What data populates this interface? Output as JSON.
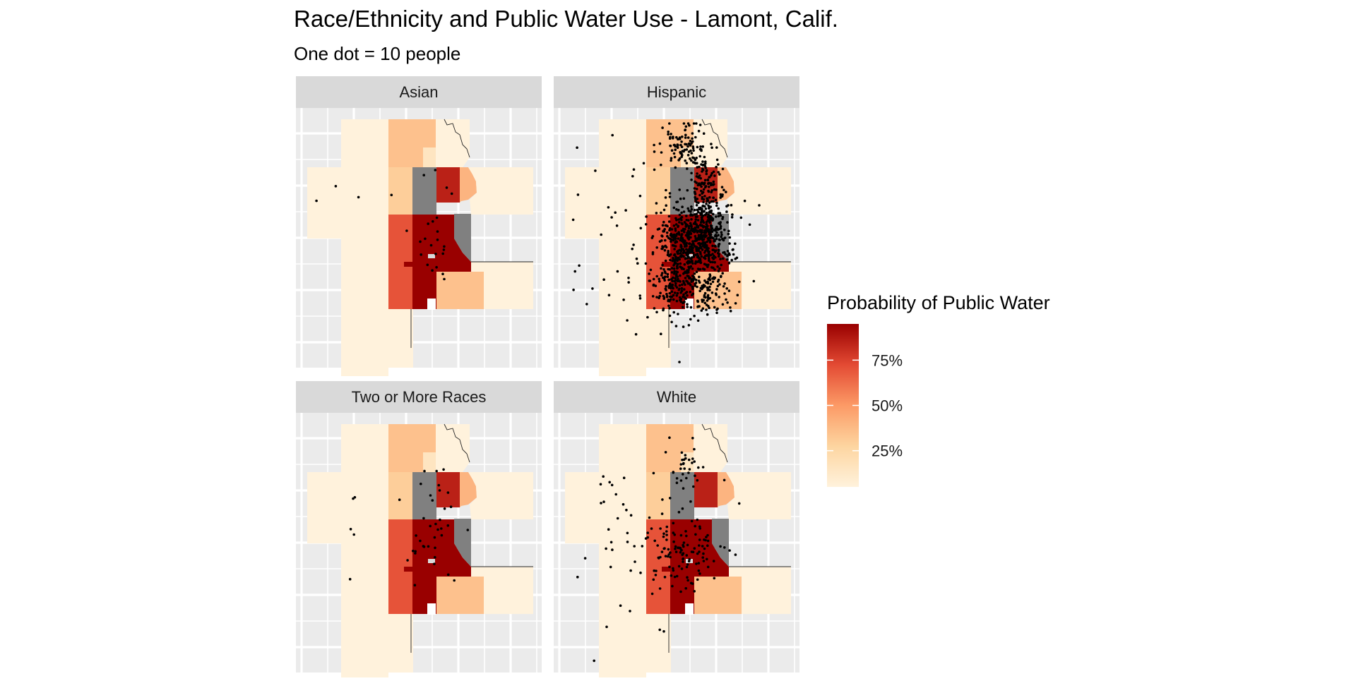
{
  "title": "Race/Ethnicity and Public Water Use - Lamont, Calif.",
  "subtitle": "One dot = 10 people",
  "legend": {
    "title": "Probability of Public Water",
    "ticks": [
      {
        "label": "75%",
        "value": 0.75
      },
      {
        "label": "50%",
        "value": 0.5
      },
      {
        "label": "25%",
        "value": 0.25
      }
    ],
    "range": [
      0.05,
      0.95
    ],
    "colors": [
      "#FFF2DC",
      "#FDD5A0",
      "#FC9A66",
      "#E34A33",
      "#990000"
    ]
  },
  "na_color": "#808080",
  "panels": [
    {
      "label": "Asian",
      "dot_count": 28
    },
    {
      "label": "Hispanic",
      "dot_count": 1200
    },
    {
      "label": "Two or More Races",
      "dot_count": 42
    },
    {
      "label": "White",
      "dot_count": 190
    }
  ],
  "chart_data": {
    "type": "dot-density-choropleth",
    "title": "Race/Ethnicity and Public Water Use - Lamont, Calif.",
    "subtitle": "One dot = 10 people",
    "facets": [
      "Asian",
      "Hispanic",
      "Two or More Races",
      "White"
    ],
    "dot_value": 10,
    "fill_variable": "Probability of Public Water",
    "tracts": [
      {
        "name": "west-outer",
        "prob": 0.05
      },
      {
        "name": "north-center",
        "prob": 0.35
      },
      {
        "name": "north-notch",
        "prob": 0.15
      },
      {
        "name": "northeast",
        "prob": 0.05
      },
      {
        "name": "mid-left",
        "prob": 0.3
      },
      {
        "name": "mid-na",
        "prob": null
      },
      {
        "name": "mid-red",
        "prob": 0.85
      },
      {
        "name": "mid-right",
        "prob": 0.4
      },
      {
        "name": "east-outer",
        "prob": 0.05
      },
      {
        "name": "south-left",
        "prob": 0.7
      },
      {
        "name": "south-core",
        "prob": 0.95
      },
      {
        "name": "south-east-na",
        "prob": null
      },
      {
        "name": "south-bottom",
        "prob": 0.35
      },
      {
        "name": "southeast-outer",
        "prob": 0.05
      },
      {
        "name": "south-strip",
        "prob": 0.05
      }
    ]
  }
}
